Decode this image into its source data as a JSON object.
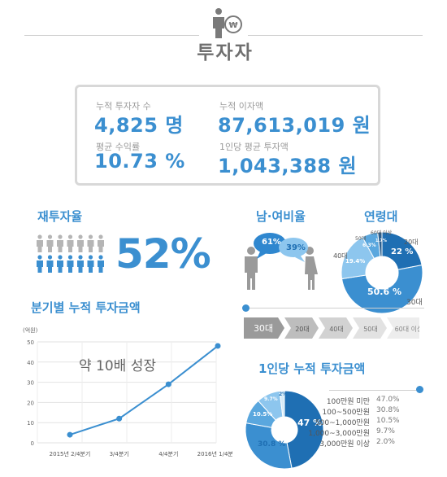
{
  "header": {
    "title": "투자자"
  },
  "stats": [
    {
      "label": "누적 투자자 수",
      "value": "4,825 명"
    },
    {
      "label": "누적 이자액",
      "value": "87,613,019 원"
    },
    {
      "label": "평균 수익률",
      "value": "10.73 %"
    },
    {
      "label": "1인당 평균 투자액",
      "value": "1,043,388 원"
    }
  ],
  "reinvest": {
    "title": "재투자율",
    "value": "52%",
    "filled_fraction": 0.52
  },
  "gender": {
    "title": "남·여비율",
    "male": "61%",
    "female": "39%"
  },
  "age": {
    "title": "연령대",
    "labels": [
      "20대",
      "30대",
      "40대",
      "50대",
      "60대 이상"
    ],
    "values": [
      "22 %",
      "50.6 %",
      "19.4%",
      "6.3%",
      "1.7%"
    ],
    "bar_labels": [
      "30대",
      "20대",
      "40대",
      "50대",
      "60대 이상"
    ]
  },
  "per_person": {
    "title": "1인당 누적 투자금액",
    "legend": [
      {
        "label": "100만원 미만",
        "value": "47.0%"
      },
      {
        "label": "100~500만원",
        "value": "30.8%"
      },
      {
        "label": "500~1,000만원",
        "value": "10.5%"
      },
      {
        "label": "1,000~3,000만원",
        "value": "9.7%"
      },
      {
        "label": "3,000만원 이상",
        "value": "2.0%"
      }
    ],
    "slice_labels": [
      "47 %",
      "30.8 %",
      "10.5%",
      "9.7%",
      "2%"
    ]
  },
  "chart_data": [
    {
      "type": "line",
      "title": "분기별 누적 투자금액",
      "ylabel": "(억원)",
      "categories": [
        "2015년 2/4분기",
        "3/4분기",
        "4/4분기",
        "2016년 1/4분기"
      ],
      "values": [
        4,
        12,
        29,
        48
      ],
      "ylim": [
        0,
        50
      ],
      "yticks": [
        "0",
        "10",
        "20",
        "30",
        "40",
        "50"
      ],
      "annotation": "약 10배 성장",
      "grid": true
    },
    {
      "type": "pie",
      "title": "연령대",
      "categories": [
        "20대",
        "30대",
        "40대",
        "50대",
        "60대 이상"
      ],
      "values": [
        22,
        50.6,
        19.4,
        6.3,
        1.7
      ]
    },
    {
      "type": "pie",
      "title": "1인당 누적 투자금액",
      "categories": [
        "100만원 미만",
        "100~500만원",
        "500~1,000만원",
        "1,000~3,000만원",
        "3,000만원 이상"
      ],
      "values": [
        47.0,
        30.8,
        10.5,
        9.7,
        2.0
      ]
    }
  ],
  "colors": {
    "accent": "#3b8fd0",
    "dark_blue": "#1f6fb3",
    "light_blue": "#8dc6ee",
    "gray": "#a8a8a8"
  }
}
